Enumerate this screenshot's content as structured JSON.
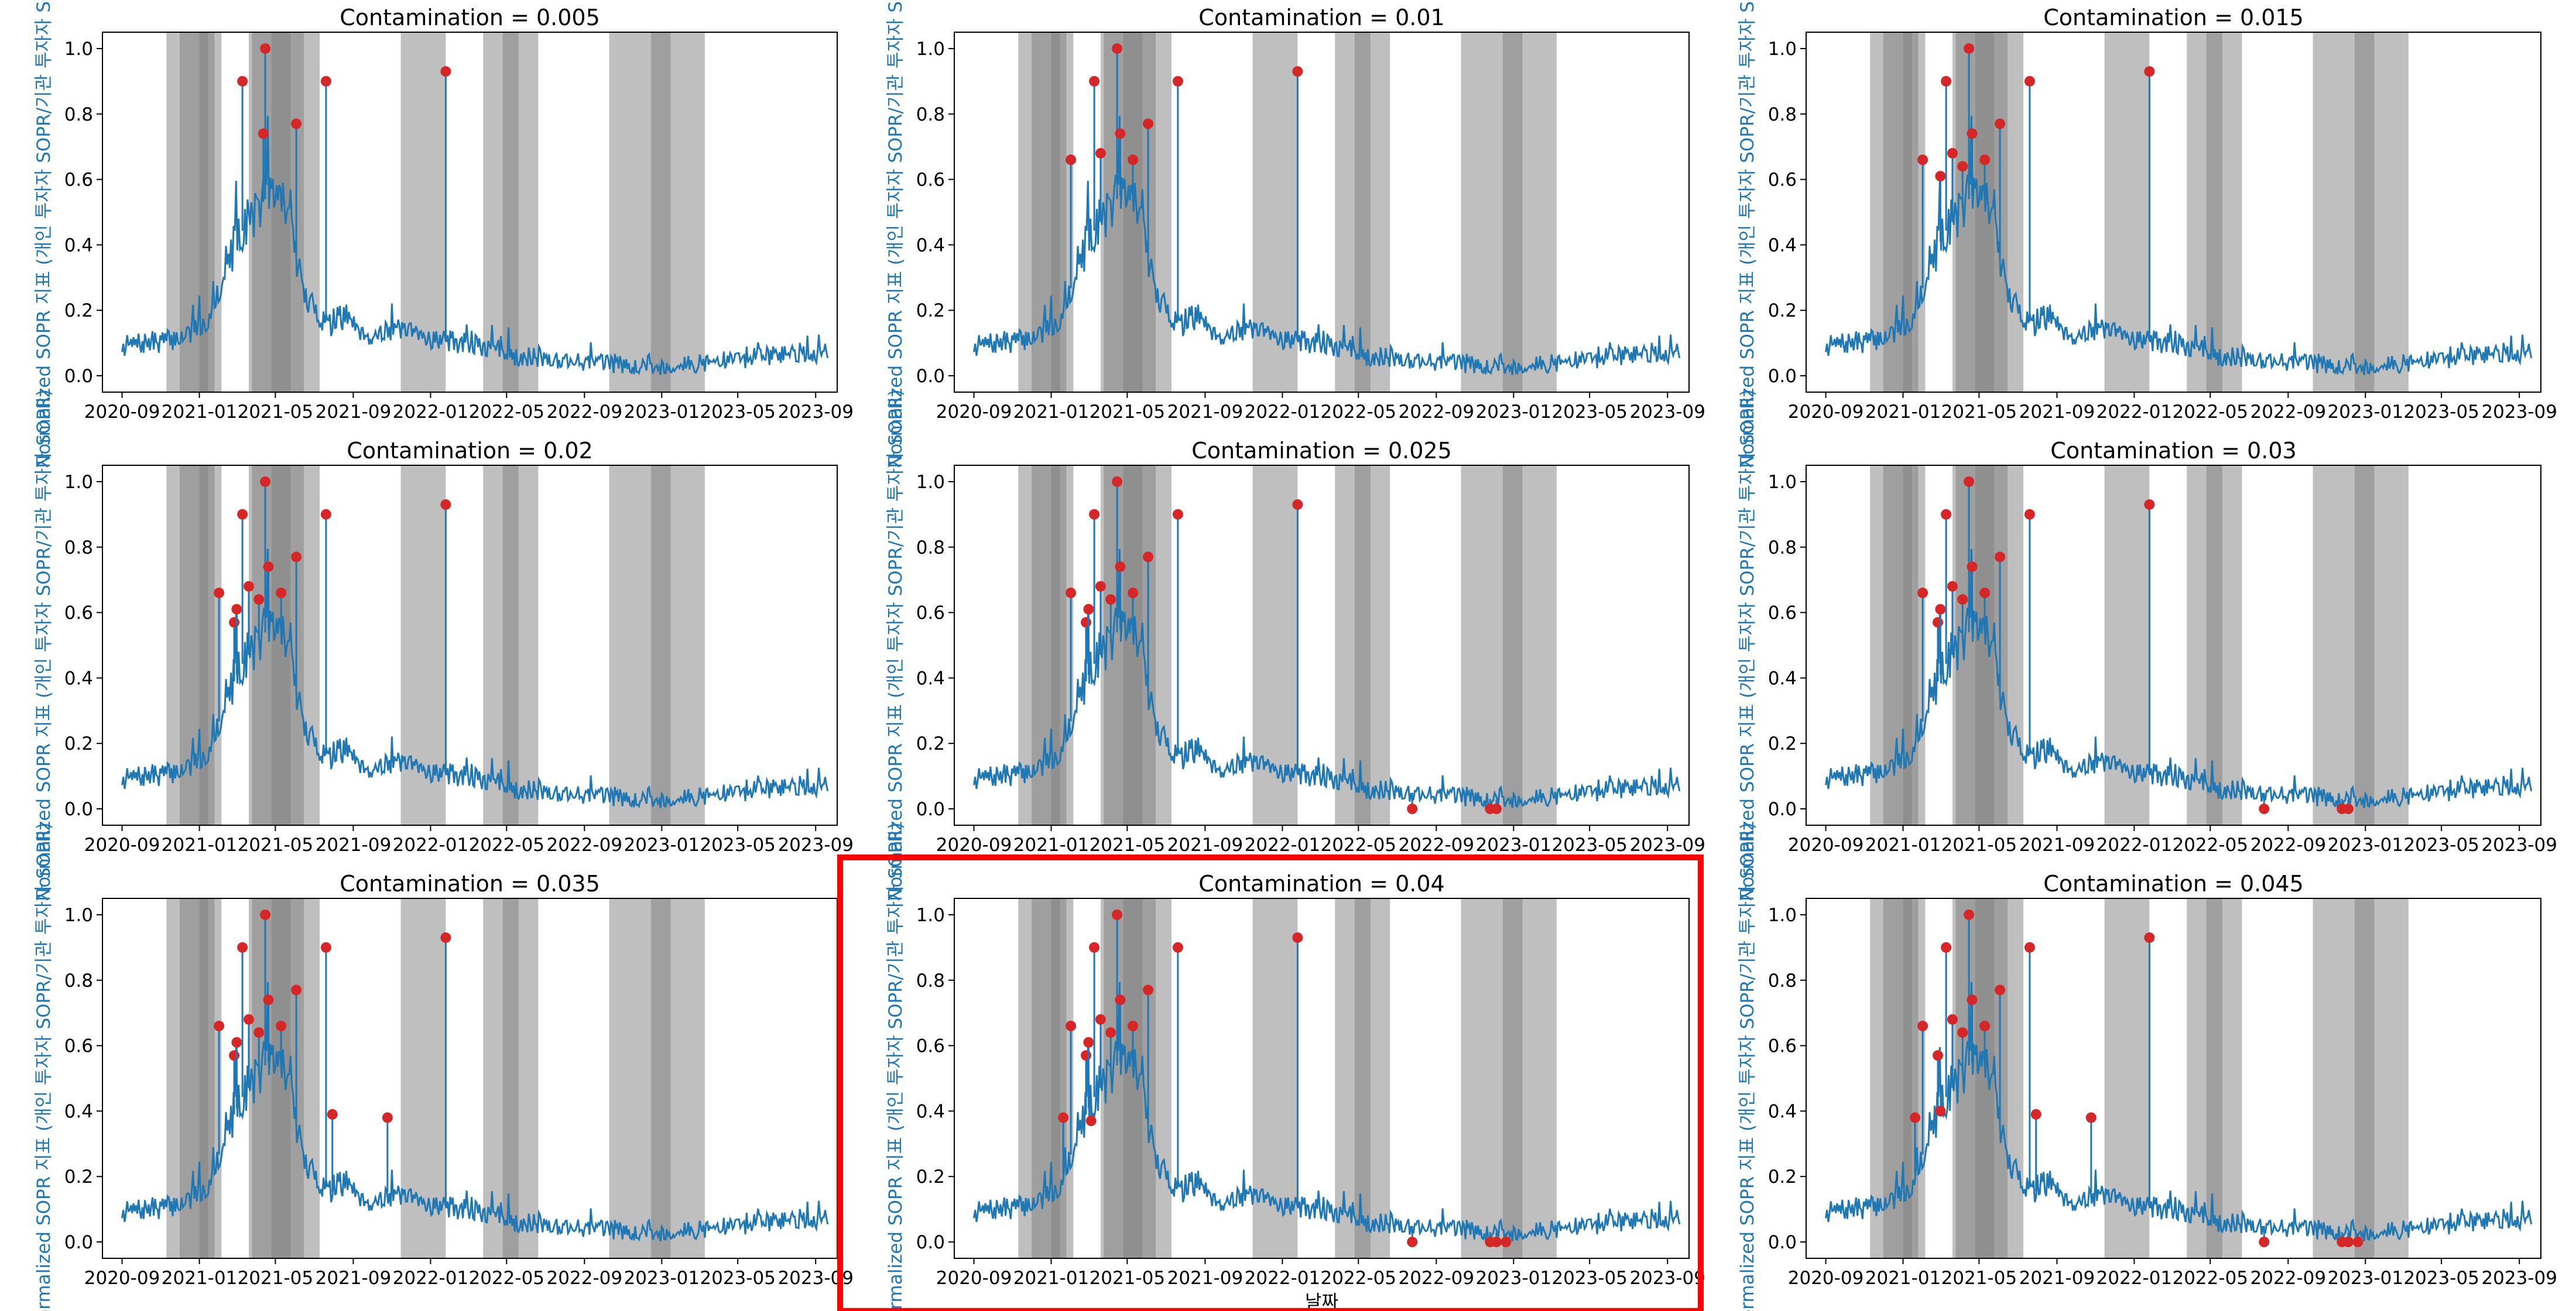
{
  "figure": {
    "highlight_color": "#ff0000",
    "line_color": "#1f77b4",
    "anomaly_color": "#d62728",
    "band_color": "#808080",
    "ylabel_color": "#1f77b4"
  },
  "chart_data": [
    {
      "type": "line",
      "title": "Contamination = 0.005",
      "ylabel": "Normalized SOPR 지표 (개인 투자자 SOPR/기관 투자자 SOPR)",
      "xlabel": "",
      "ylim": [
        0,
        1
      ],
      "x_ticks": [
        "2020-09",
        "2021-01",
        "2021-05",
        "2021-09",
        "2022-01",
        "2022-05",
        "2022-09",
        "2023-01",
        "2023-05",
        "2023-09"
      ],
      "y_ticks": [
        "0.0",
        "0.2",
        "0.4",
        "0.6",
        "0.8",
        "1.0"
      ],
      "anomalies": [
        {
          "date": "2021-03-10",
          "value": 0.9
        },
        {
          "date": "2021-04-15",
          "value": 1.0
        },
        {
          "date": "2021-04-12",
          "value": 0.74
        },
        {
          "date": "2021-06-03",
          "value": 0.77
        },
        {
          "date": "2021-07-20",
          "value": 0.9
        },
        {
          "date": "2022-01-25",
          "value": 0.93
        }
      ],
      "highlighted": false
    },
    {
      "type": "line",
      "title": "Contamination = 0.01",
      "ylabel": "Normalized SOPR 지표 (개인 투자자 SOPR/기관 투자자 SOPR)",
      "xlabel": "",
      "ylim": [
        0,
        1
      ],
      "x_ticks": [
        "2020-09",
        "2021-01",
        "2021-05",
        "2021-09",
        "2022-01",
        "2022-05",
        "2022-09",
        "2023-01",
        "2023-05",
        "2023-09"
      ],
      "y_ticks": [
        "0.0",
        "0.2",
        "0.4",
        "0.6",
        "0.8",
        "1.0"
      ],
      "anomalies": [
        {
          "date": "2021-02-01",
          "value": 0.66
        },
        {
          "date": "2021-03-10",
          "value": 0.9
        },
        {
          "date": "2021-03-20",
          "value": 0.68
        },
        {
          "date": "2021-04-15",
          "value": 1.0
        },
        {
          "date": "2021-04-20",
          "value": 0.74
        },
        {
          "date": "2021-05-10",
          "value": 0.66
        },
        {
          "date": "2021-06-03",
          "value": 0.77
        },
        {
          "date": "2021-07-20",
          "value": 0.9
        },
        {
          "date": "2022-01-25",
          "value": 0.93
        }
      ],
      "highlighted": false
    },
    {
      "type": "line",
      "title": "Contamination = 0.015",
      "ylabel": "Normalized SOPR 지표 (개인 투자자 SOPR/기관 투자자 SOPR)",
      "xlabel": "",
      "ylim": [
        0,
        1
      ],
      "x_ticks": [
        "2020-09",
        "2021-01",
        "2021-05",
        "2021-09",
        "2022-01",
        "2022-05",
        "2022-09",
        "2023-01",
        "2023-05",
        "2023-09"
      ],
      "y_ticks": [
        "0.0",
        "0.2",
        "0.4",
        "0.6",
        "0.8",
        "1.0"
      ],
      "anomalies": [
        {
          "date": "2021-02-01",
          "value": 0.66
        },
        {
          "date": "2021-03-01",
          "value": 0.61
        },
        {
          "date": "2021-03-10",
          "value": 0.9
        },
        {
          "date": "2021-03-20",
          "value": 0.68
        },
        {
          "date": "2021-04-05",
          "value": 0.64
        },
        {
          "date": "2021-04-15",
          "value": 1.0
        },
        {
          "date": "2021-04-20",
          "value": 0.74
        },
        {
          "date": "2021-05-10",
          "value": 0.66
        },
        {
          "date": "2021-06-03",
          "value": 0.77
        },
        {
          "date": "2021-07-20",
          "value": 0.9
        },
        {
          "date": "2022-01-25",
          "value": 0.93
        }
      ],
      "highlighted": false
    },
    {
      "type": "line",
      "title": "Contamination = 0.02",
      "ylabel": "Normalized SOPR 지표 (개인 투자자 SOPR/기관 투자자 SOPR)",
      "xlabel": "",
      "ylim": [
        0,
        1
      ],
      "x_ticks": [
        "2020-09",
        "2021-01",
        "2021-05",
        "2021-09",
        "2022-01",
        "2022-05",
        "2022-09",
        "2023-01",
        "2023-05",
        "2023-09"
      ],
      "y_ticks": [
        "0.0",
        "0.2",
        "0.4",
        "0.6",
        "0.8",
        "1.0"
      ],
      "anomalies": [
        {
          "date": "2021-02-01",
          "value": 0.66
        },
        {
          "date": "2021-02-25",
          "value": 0.57
        },
        {
          "date": "2021-03-01",
          "value": 0.61
        },
        {
          "date": "2021-03-10",
          "value": 0.9
        },
        {
          "date": "2021-03-20",
          "value": 0.68
        },
        {
          "date": "2021-04-05",
          "value": 0.64
        },
        {
          "date": "2021-04-15",
          "value": 1.0
        },
        {
          "date": "2021-04-20",
          "value": 0.74
        },
        {
          "date": "2021-05-10",
          "value": 0.66
        },
        {
          "date": "2021-06-03",
          "value": 0.77
        },
        {
          "date": "2021-07-20",
          "value": 0.9
        },
        {
          "date": "2022-01-25",
          "value": 0.93
        }
      ],
      "highlighted": false
    },
    {
      "type": "line",
      "title": "Contamination = 0.025",
      "ylabel": "Normalized SOPR 지표 (개인 투자자 SOPR/기관 투자자 SOPR)",
      "xlabel": "",
      "ylim": [
        0,
        1
      ],
      "x_ticks": [
        "2020-09",
        "2021-01",
        "2021-05",
        "2021-09",
        "2022-01",
        "2022-05",
        "2022-09",
        "2023-01",
        "2023-05",
        "2023-09"
      ],
      "y_ticks": [
        "0.0",
        "0.2",
        "0.4",
        "0.6",
        "0.8",
        "1.0"
      ],
      "anomalies": [
        {
          "date": "2021-02-01",
          "value": 0.66
        },
        {
          "date": "2021-02-25",
          "value": 0.57
        },
        {
          "date": "2021-03-01",
          "value": 0.61
        },
        {
          "date": "2021-03-10",
          "value": 0.9
        },
        {
          "date": "2021-03-20",
          "value": 0.68
        },
        {
          "date": "2021-04-05",
          "value": 0.64
        },
        {
          "date": "2021-04-15",
          "value": 1.0
        },
        {
          "date": "2021-04-20",
          "value": 0.74
        },
        {
          "date": "2021-05-10",
          "value": 0.66
        },
        {
          "date": "2021-06-03",
          "value": 0.77
        },
        {
          "date": "2021-07-20",
          "value": 0.9
        },
        {
          "date": "2022-01-25",
          "value": 0.93
        },
        {
          "date": "2022-07-25",
          "value": 0.0
        },
        {
          "date": "2022-11-25",
          "value": 0.0
        },
        {
          "date": "2022-12-05",
          "value": 0.0
        }
      ],
      "highlighted": false
    },
    {
      "type": "line",
      "title": "Contamination = 0.03",
      "ylabel": "Normalized SOPR 지표 (개인 투자자 SOPR/기관 투자자 SOPR)",
      "xlabel": "",
      "ylim": [
        0,
        1
      ],
      "x_ticks": [
        "2020-09",
        "2021-01",
        "2021-05",
        "2021-09",
        "2022-01",
        "2022-05",
        "2022-09",
        "2023-01",
        "2023-05",
        "2023-09"
      ],
      "y_ticks": [
        "0.0",
        "0.2",
        "0.4",
        "0.6",
        "0.8",
        "1.0"
      ],
      "anomalies": [
        {
          "date": "2021-02-01",
          "value": 0.66
        },
        {
          "date": "2021-02-25",
          "value": 0.57
        },
        {
          "date": "2021-03-01",
          "value": 0.61
        },
        {
          "date": "2021-03-10",
          "value": 0.9
        },
        {
          "date": "2021-03-20",
          "value": 0.68
        },
        {
          "date": "2021-04-05",
          "value": 0.64
        },
        {
          "date": "2021-04-15",
          "value": 1.0
        },
        {
          "date": "2021-04-20",
          "value": 0.74
        },
        {
          "date": "2021-05-10",
          "value": 0.66
        },
        {
          "date": "2021-06-03",
          "value": 0.77
        },
        {
          "date": "2021-07-20",
          "value": 0.9
        },
        {
          "date": "2022-01-25",
          "value": 0.93
        },
        {
          "date": "2022-07-25",
          "value": 0.0
        },
        {
          "date": "2022-11-25",
          "value": 0.0
        },
        {
          "date": "2022-12-05",
          "value": 0.0
        }
      ],
      "highlighted": false
    },
    {
      "type": "line",
      "title": "Contamination = 0.035",
      "ylabel": "Normalized SOPR 지표 (개인 투자자 SOPR/기관 투자자 SOPR)",
      "xlabel": "",
      "ylim": [
        0,
        1
      ],
      "x_ticks": [
        "2020-09",
        "2021-01",
        "2021-05",
        "2021-09",
        "2022-01",
        "2022-05",
        "2022-09",
        "2023-01",
        "2023-05",
        "2023-09"
      ],
      "y_ticks": [
        "0.0",
        "0.2",
        "0.4",
        "0.6",
        "0.8",
        "1.0"
      ],
      "anomalies": [
        {
          "date": "2021-02-01",
          "value": 0.66
        },
        {
          "date": "2021-02-25",
          "value": 0.57
        },
        {
          "date": "2021-03-01",
          "value": 0.61
        },
        {
          "date": "2021-03-10",
          "value": 0.9
        },
        {
          "date": "2021-03-20",
          "value": 0.68
        },
        {
          "date": "2021-04-05",
          "value": 0.64
        },
        {
          "date": "2021-04-15",
          "value": 1.0
        },
        {
          "date": "2021-04-20",
          "value": 0.74
        },
        {
          "date": "2021-05-10",
          "value": 0.66
        },
        {
          "date": "2021-06-03",
          "value": 0.77
        },
        {
          "date": "2021-07-20",
          "value": 0.9
        },
        {
          "date": "2021-07-30",
          "value": 0.39
        },
        {
          "date": "2021-10-25",
          "value": 0.38
        },
        {
          "date": "2022-01-25",
          "value": 0.93
        }
      ],
      "highlighted": false
    },
    {
      "type": "line",
      "title": "Contamination = 0.04",
      "ylabel": "Normalized SOPR 지표 (개인 투자자 SOPR/기관 투자자 SOPR)",
      "xlabel": "날짜",
      "ylim": [
        0,
        1
      ],
      "x_ticks": [
        "2020-09",
        "2021-01",
        "2021-05",
        "2021-09",
        "2022-01",
        "2022-05",
        "2022-09",
        "2023-01",
        "2023-05",
        "2023-09"
      ],
      "y_ticks": [
        "0.0",
        "0.2",
        "0.4",
        "0.6",
        "0.8",
        "1.0"
      ],
      "anomalies": [
        {
          "date": "2021-01-20",
          "value": 0.38
        },
        {
          "date": "2021-02-01",
          "value": 0.66
        },
        {
          "date": "2021-02-25",
          "value": 0.57
        },
        {
          "date": "2021-03-01",
          "value": 0.61
        },
        {
          "date": "2021-03-05",
          "value": 0.37
        },
        {
          "date": "2021-03-10",
          "value": 0.9
        },
        {
          "date": "2021-03-20",
          "value": 0.68
        },
        {
          "date": "2021-04-05",
          "value": 0.64
        },
        {
          "date": "2021-04-15",
          "value": 1.0
        },
        {
          "date": "2021-04-20",
          "value": 0.74
        },
        {
          "date": "2021-05-10",
          "value": 0.66
        },
        {
          "date": "2021-06-03",
          "value": 0.77
        },
        {
          "date": "2021-07-20",
          "value": 0.9
        },
        {
          "date": "2022-01-25",
          "value": 0.93
        },
        {
          "date": "2022-07-25",
          "value": 0.0
        },
        {
          "date": "2022-11-25",
          "value": 0.0
        },
        {
          "date": "2022-12-05",
          "value": 0.0
        },
        {
          "date": "2022-12-20",
          "value": 0.0
        }
      ],
      "highlighted": true
    },
    {
      "type": "line",
      "title": "Contamination = 0.045",
      "ylabel": "Normalized SOPR 지표 (개인 투자자 SOPR/기관 투자자 SOPR)",
      "xlabel": "",
      "ylim": [
        0,
        1
      ],
      "x_ticks": [
        "2020-09",
        "2021-01",
        "2021-05",
        "2021-09",
        "2022-01",
        "2022-05",
        "2022-09",
        "2023-01",
        "2023-05",
        "2023-09"
      ],
      "y_ticks": [
        "0.0",
        "0.2",
        "0.4",
        "0.6",
        "0.8",
        "1.0"
      ],
      "anomalies": [
        {
          "date": "2021-01-20",
          "value": 0.38
        },
        {
          "date": "2021-02-01",
          "value": 0.66
        },
        {
          "date": "2021-02-25",
          "value": 0.57
        },
        {
          "date": "2021-03-01",
          "value": 0.4
        },
        {
          "date": "2021-03-10",
          "value": 0.9
        },
        {
          "date": "2021-03-20",
          "value": 0.68
        },
        {
          "date": "2021-04-05",
          "value": 0.64
        },
        {
          "date": "2021-04-15",
          "value": 1.0
        },
        {
          "date": "2021-04-20",
          "value": 0.74
        },
        {
          "date": "2021-05-10",
          "value": 0.66
        },
        {
          "date": "2021-06-03",
          "value": 0.77
        },
        {
          "date": "2021-07-20",
          "value": 0.9
        },
        {
          "date": "2021-07-30",
          "value": 0.39
        },
        {
          "date": "2021-10-25",
          "value": 0.38
        },
        {
          "date": "2022-01-25",
          "value": 0.93
        },
        {
          "date": "2022-07-25",
          "value": 0.0
        },
        {
          "date": "2022-11-25",
          "value": 0.0
        },
        {
          "date": "2022-12-05",
          "value": 0.0
        },
        {
          "date": "2022-12-20",
          "value": 0.0
        }
      ],
      "highlighted": false
    }
  ],
  "shaded_periods": [
    {
      "start": "2020-11-10",
      "end": "2021-01-15"
    },
    {
      "start": "2020-12-01",
      "end": "2021-02-05"
    },
    {
      "start": "2021-01-01",
      "end": "2021-01-25"
    },
    {
      "start": "2021-03-20",
      "end": "2021-05-25"
    },
    {
      "start": "2021-03-25",
      "end": "2021-07-10"
    },
    {
      "start": "2021-04-25",
      "end": "2021-06-15"
    },
    {
      "start": "2021-11-15",
      "end": "2022-01-25"
    },
    {
      "start": "2022-03-25",
      "end": "2022-06-20"
    },
    {
      "start": "2022-04-25",
      "end": "2022-05-20"
    },
    {
      "start": "2022-10-10",
      "end": "2023-01-15"
    },
    {
      "start": "2022-12-15",
      "end": "2023-03-10"
    }
  ]
}
